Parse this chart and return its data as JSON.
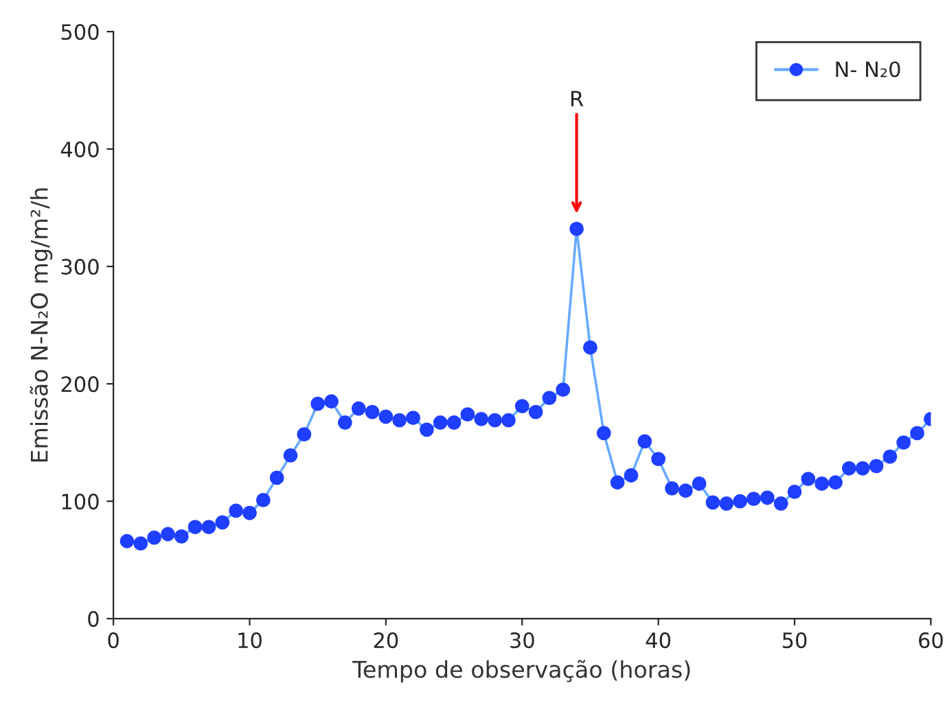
{
  "chart_data": {
    "type": "line",
    "xlabel": "Tempo de observação (horas)",
    "ylabel": "Emissão N-N₂O mg/m²/h",
    "x": [
      1,
      2,
      3,
      4,
      5,
      6,
      7,
      8,
      9,
      10,
      11,
      12,
      13,
      14,
      15,
      16,
      17,
      18,
      19,
      20,
      21,
      22,
      23,
      24,
      25,
      26,
      27,
      28,
      29,
      30,
      31,
      32,
      33,
      34,
      35,
      36,
      37,
      38,
      39,
      40,
      41,
      42,
      43,
      44,
      45,
      46,
      47,
      48,
      49,
      50,
      51,
      52,
      53,
      54,
      55,
      56,
      57,
      58,
      59,
      60
    ],
    "series": [
      {
        "name": "N- N₂0",
        "color": "#1f3fff",
        "values": [
          66,
          64,
          69,
          72,
          70,
          78,
          78,
          82,
          92,
          90,
          101,
          120,
          139,
          157,
          183,
          185,
          167,
          179,
          176,
          172,
          169,
          171,
          161,
          167,
          167,
          174,
          170,
          169,
          169,
          181,
          176,
          188,
          195,
          332,
          231,
          158,
          116,
          122,
          151,
          136,
          111,
          109,
          115,
          99,
          98,
          100,
          102,
          103,
          98,
          108,
          119,
          115,
          116,
          128,
          128,
          130,
          138,
          150,
          158,
          170
        ]
      }
    ],
    "xlim": [
      0,
      60
    ],
    "xticks": [
      0,
      10,
      20,
      30,
      40,
      50,
      60
    ],
    "ylim": [
      0,
      500
    ],
    "yticks": [
      0,
      100,
      200,
      300,
      400,
      500
    ],
    "grid": false,
    "legend": "top right",
    "marker": "circle",
    "line_style": "solid",
    "annotations": [
      "R"
    ]
  }
}
